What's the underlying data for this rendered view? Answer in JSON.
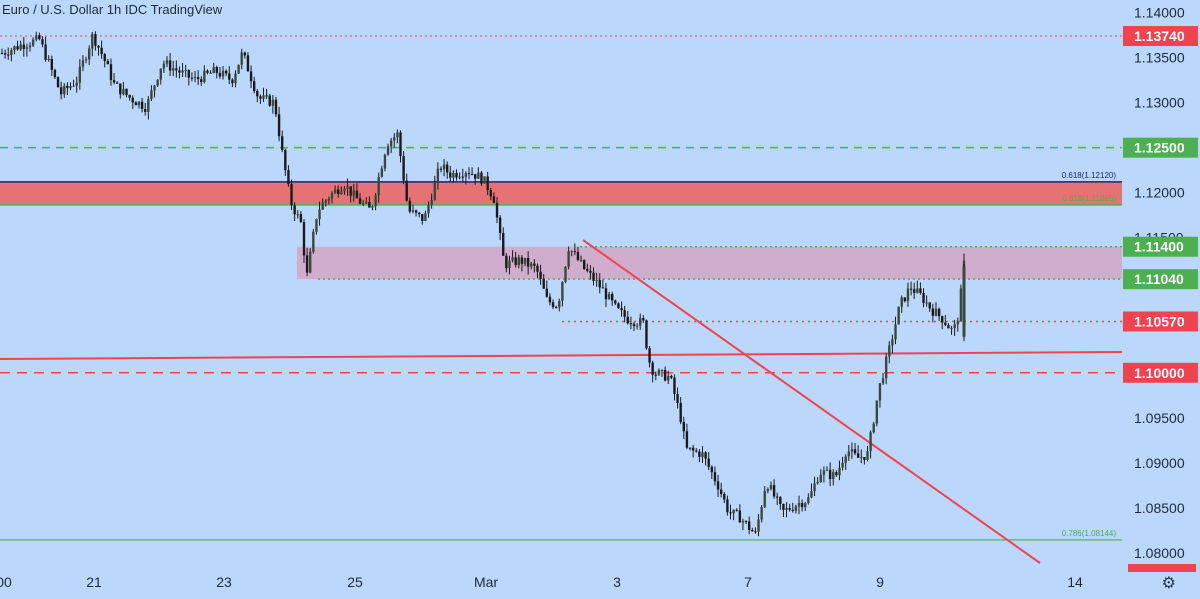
{
  "header": {
    "title": "Euro / U.S. Dollar  1h  IDC  TradingView"
  },
  "colors": {
    "background": "#bbd8fc",
    "up": "#3a4a3a",
    "down": "#1a1a1a",
    "red": "#f04350",
    "green": "#4caf50",
    "navy": "#1a237e",
    "red_zone": "#e57373",
    "pink_zone": "#d4a5c4"
  },
  "chart_data": {
    "type": "candlestick",
    "ylim": [
      1.0781,
      1.1414
    ],
    "yticks": [
      "1.14000",
      "1.13500",
      "1.13000",
      "1.12000",
      "1.11500",
      "1.09500",
      "1.09000",
      "1.08500",
      "1.08000"
    ],
    "xtick_labels": [
      "00",
      "21",
      "23",
      "25",
      "Mar",
      "3",
      "7",
      "9",
      "14"
    ],
    "price_labels": [
      {
        "text": "1.13740",
        "value": 1.1374,
        "color": "red"
      },
      {
        "text": "1.12500",
        "value": 1.125,
        "color": "green"
      },
      {
        "text": "1.11400",
        "value": 1.114,
        "color": "green"
      },
      {
        "text": "1.11040",
        "value": 1.1104,
        "color": "green"
      },
      {
        "text": "1.10570",
        "value": 1.1057,
        "color": "red"
      },
      {
        "text": "1.10000",
        "value": 1.1,
        "color": "red"
      }
    ],
    "fib_labels": [
      {
        "text": "0.618(1.12120)",
        "value": 1.1212,
        "color": "navy"
      },
      {
        "text": "0.618(1.11865)",
        "value": 1.11865,
        "color": "green"
      },
      {
        "text": "0.786(1.08144)",
        "value": 1.08144,
        "color": "green"
      }
    ],
    "ohlc_path": [
      [
        0.0,
        1.1355
      ],
      [
        0.02,
        1.1365
      ],
      [
        0.035,
        1.137
      ],
      [
        0.045,
        1.134
      ],
      [
        0.055,
        1.131
      ],
      [
        0.07,
        1.1325
      ],
      [
        0.085,
        1.1375
      ],
      [
        0.095,
        1.135
      ],
      [
        0.105,
        1.132
      ],
      [
        0.12,
        1.1305
      ],
      [
        0.135,
        1.1295
      ],
      [
        0.15,
        1.1345
      ],
      [
        0.165,
        1.1335
      ],
      [
        0.18,
        1.1325
      ],
      [
        0.2,
        1.1335
      ],
      [
        0.215,
        1.1325
      ],
      [
        0.225,
        1.1355
      ],
      [
        0.24,
        1.1305
      ],
      [
        0.255,
        1.13
      ],
      [
        0.262,
        1.1245
      ],
      [
        0.27,
        1.119
      ],
      [
        0.28,
        1.1165
      ],
      [
        0.285,
        1.1105
      ],
      [
        0.295,
        1.118
      ],
      [
        0.305,
        1.1195
      ],
      [
        0.32,
        1.121
      ],
      [
        0.33,
        1.1195
      ],
      [
        0.345,
        1.118
      ],
      [
        0.36,
        1.1255
      ],
      [
        0.37,
        1.1265
      ],
      [
        0.38,
        1.118
      ],
      [
        0.395,
        1.117
      ],
      [
        0.41,
        1.123
      ],
      [
        0.42,
        1.122
      ],
      [
        0.435,
        1.1225
      ],
      [
        0.45,
        1.1215
      ],
      [
        0.46,
        1.1195
      ],
      [
        0.47,
        1.112
      ],
      [
        0.485,
        1.1125
      ],
      [
        0.5,
        1.1115
      ],
      [
        0.51,
        1.108
      ],
      [
        0.52,
        1.1075
      ],
      [
        0.53,
        1.114
      ],
      [
        0.545,
        1.1115
      ],
      [
        0.56,
        1.1095
      ],
      [
        0.575,
        1.107
      ],
      [
        0.585,
        1.106
      ],
      [
        0.6,
        1.1055
      ],
      [
        0.605,
        1.1015
      ],
      [
        0.61,
        1.1
      ],
      [
        0.625,
        1.0995
      ],
      [
        0.635,
        1.095
      ],
      [
        0.64,
        1.0915
      ],
      [
        0.655,
        1.091
      ],
      [
        0.67,
        1.0875
      ],
      [
        0.68,
        1.0845
      ],
      [
        0.69,
        1.084
      ],
      [
        0.705,
        1.082
      ],
      [
        0.715,
        1.088
      ],
      [
        0.73,
        1.0845
      ],
      [
        0.745,
        1.0855
      ],
      [
        0.755,
        1.086
      ],
      [
        0.765,
        1.089
      ],
      [
        0.78,
        1.0885
      ],
      [
        0.79,
        1.0915
      ],
      [
        0.8,
        1.0905
      ],
      [
        0.81,
        1.091
      ],
      [
        0.82,
        1.098
      ],
      [
        0.83,
        1.1025
      ],
      [
        0.84,
        1.1075
      ],
      [
        0.85,
        1.1095
      ],
      [
        0.86,
        1.1085
      ],
      [
        0.87,
        1.107
      ],
      [
        0.88,
        1.106
      ],
      [
        0.89,
        1.1045
      ],
      [
        0.895,
        1.1065
      ],
      [
        0.9,
        1.112
      ]
    ]
  }
}
